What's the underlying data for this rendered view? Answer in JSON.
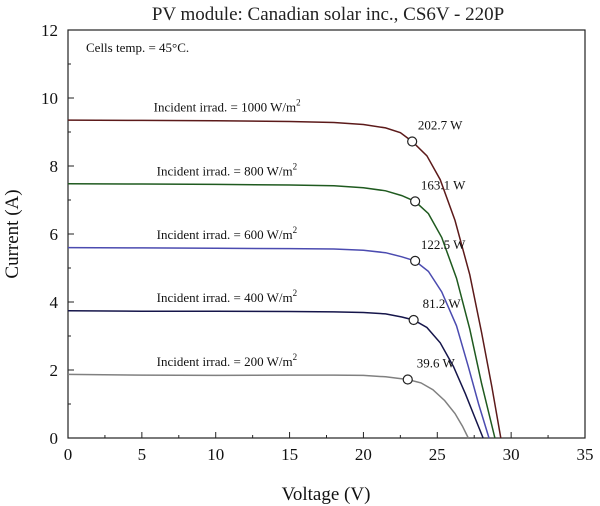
{
  "chart_data": {
    "type": "line",
    "title": "PV module: Canadian solar inc., CS6V - 220P",
    "xlabel": "Voltage (V)",
    "ylabel": "Current (A)",
    "xlim": [
      0,
      35
    ],
    "ylim": [
      0,
      12
    ],
    "xticks": [
      0,
      5,
      10,
      15,
      20,
      25,
      30,
      35
    ],
    "yticks": [
      0,
      2,
      4,
      6,
      8,
      10,
      12
    ],
    "grid": false,
    "annotations": [
      {
        "text": "Cells temp. = 45°C.",
        "x": 1.2,
        "y": 11.4
      }
    ],
    "series": [
      {
        "irr_prefix": "Incident irrad. = 1000 W/m",
        "irr_sup": "2",
        "color": "#5c1a1a",
        "label_pos": {
          "x": 5.8,
          "y": 9.6
        },
        "points": [
          [
            0,
            9.35
          ],
          [
            5,
            9.34
          ],
          [
            10,
            9.33
          ],
          [
            15,
            9.31
          ],
          [
            18,
            9.28
          ],
          [
            20,
            9.22
          ],
          [
            21.5,
            9.12
          ],
          [
            22.5,
            8.98
          ],
          [
            23.3,
            8.72
          ],
          [
            24.3,
            8.3
          ],
          [
            25.2,
            7.6
          ],
          [
            26.2,
            6.4
          ],
          [
            27.2,
            4.8
          ],
          [
            28,
            3.1
          ],
          [
            28.7,
            1.5
          ],
          [
            29.3,
            0
          ]
        ],
        "mpp": {
          "x": 23.3,
          "y": 8.72,
          "label": "202.7 W"
        }
      },
      {
        "irr_prefix": "Incident irrad. = 800 W/m",
        "irr_sup": "2",
        "color": "#1f5a1f",
        "label_pos": {
          "x": 6.0,
          "y": 7.72
        },
        "points": [
          [
            0,
            7.48
          ],
          [
            5,
            7.47
          ],
          [
            10,
            7.46
          ],
          [
            15,
            7.44
          ],
          [
            18,
            7.42
          ],
          [
            20,
            7.36
          ],
          [
            21.5,
            7.27
          ],
          [
            22.6,
            7.13
          ],
          [
            23.5,
            6.96
          ],
          [
            24.4,
            6.6
          ],
          [
            25.3,
            5.9
          ],
          [
            26.3,
            4.7
          ],
          [
            27.2,
            3.2
          ],
          [
            28,
            1.6
          ],
          [
            28.9,
            0
          ]
        ],
        "mpp": {
          "x": 23.5,
          "y": 6.96,
          "label": "163.1 W"
        }
      },
      {
        "irr_prefix": "Incident irrad. = 600 W/m",
        "irr_sup": "2",
        "color": "#4b4bb0",
        "label_pos": {
          "x": 6.0,
          "y": 5.85
        },
        "points": [
          [
            0,
            5.6
          ],
          [
            5,
            5.59
          ],
          [
            10,
            5.58
          ],
          [
            15,
            5.57
          ],
          [
            18,
            5.56
          ],
          [
            20,
            5.52
          ],
          [
            21.5,
            5.45
          ],
          [
            22.6,
            5.33
          ],
          [
            23.5,
            5.21
          ],
          [
            24.4,
            4.9
          ],
          [
            25.3,
            4.3
          ],
          [
            26.3,
            3.3
          ],
          [
            27.1,
            2.1
          ],
          [
            27.8,
            1.0
          ],
          [
            28.5,
            0
          ]
        ],
        "mpp": {
          "x": 23.5,
          "y": 5.21,
          "label": "122.5 W"
        }
      },
      {
        "irr_prefix": "Incident irrad. = 400 W/m",
        "irr_sup": "2",
        "color": "#15154a",
        "label_pos": {
          "x": 6.0,
          "y": 4.0
        },
        "points": [
          [
            0,
            3.74
          ],
          [
            5,
            3.73
          ],
          [
            10,
            3.73
          ],
          [
            15,
            3.72
          ],
          [
            18,
            3.71
          ],
          [
            20,
            3.69
          ],
          [
            21.5,
            3.65
          ],
          [
            22.6,
            3.56
          ],
          [
            23.4,
            3.47
          ],
          [
            24.3,
            3.25
          ],
          [
            25.2,
            2.8
          ],
          [
            26.1,
            2.1
          ],
          [
            26.9,
            1.3
          ],
          [
            27.5,
            0.65
          ],
          [
            28.1,
            0
          ]
        ],
        "mpp": {
          "x": 23.4,
          "y": 3.47,
          "label": "81.2 W"
        }
      },
      {
        "irr_prefix": "Incident irrad. = 200 W/m",
        "irr_sup": "2",
        "color": "#808080",
        "label_pos": {
          "x": 6.0,
          "y": 2.12
        },
        "points": [
          [
            0,
            1.87
          ],
          [
            5,
            1.85
          ],
          [
            10,
            1.84
          ],
          [
            15,
            1.85
          ],
          [
            18,
            1.85
          ],
          [
            20,
            1.84
          ],
          [
            21.5,
            1.8
          ],
          [
            22.3,
            1.76
          ],
          [
            23,
            1.72
          ],
          [
            23.9,
            1.62
          ],
          [
            24.7,
            1.42
          ],
          [
            25.5,
            1.1
          ],
          [
            26.2,
            0.72
          ],
          [
            26.7,
            0.35
          ],
          [
            27.1,
            0
          ]
        ],
        "mpp": {
          "x": 23.0,
          "y": 1.72,
          "label": "39.6 W"
        }
      }
    ]
  }
}
